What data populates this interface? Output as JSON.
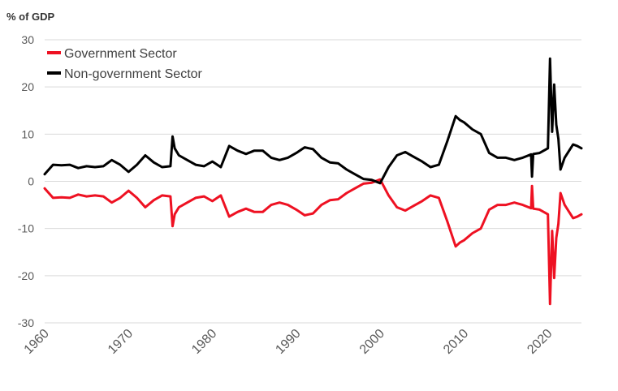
{
  "chart_data": {
    "type": "line",
    "ylabel": "% of GDP",
    "ylim": [
      -30,
      30
    ],
    "xlim": [
      1960,
      2024
    ],
    "y_ticks": [
      "30",
      "20",
      "10",
      "0",
      "-10",
      "-20",
      "-30"
    ],
    "x_ticks": [
      "1960",
      "1970",
      "1980",
      "1990",
      "2000",
      "2010",
      "2020"
    ],
    "grid": true,
    "legend_position": "top-left",
    "series": [
      {
        "name": "Government Sector",
        "color": "#ee1122",
        "x": [
          1960,
          1961,
          1962,
          1963,
          1964,
          1965,
          1966,
          1967,
          1968,
          1969,
          1970,
          1971,
          1972,
          1973,
          1974,
          1975,
          1975.25,
          1975.5,
          1976,
          1977,
          1978,
          1979,
          1980,
          1981,
          1982,
          1983,
          1984,
          1985,
          1986,
          1987,
          1988,
          1989,
          1990,
          1991,
          1992,
          1993,
          1994,
          1995,
          1996,
          1997,
          1998,
          1999,
          2000,
          2001,
          2002,
          2003,
          2004,
          2005,
          2006,
          2007,
          2008,
          2009,
          2009.5,
          2010,
          2011,
          2012,
          2013,
          2014,
          2015,
          2016,
          2017,
          2018,
          2018.1,
          2018.25,
          2019,
          2020,
          2020.25,
          2020.5,
          2020.75,
          2021,
          2021.25,
          2021.5,
          2022,
          2023,
          2023.5,
          2024
        ],
        "values": [
          -1.5,
          -3.5,
          -3.4,
          -3.5,
          -2.8,
          -3.2,
          -3.0,
          -3.2,
          -4.5,
          -3.5,
          -2.0,
          -3.5,
          -5.5,
          -4.0,
          -3.0,
          -3.2,
          -9.5,
          -7.0,
          -5.5,
          -4.5,
          -3.5,
          -3.2,
          -4.2,
          -3.0,
          -7.5,
          -6.5,
          -5.8,
          -6.5,
          -6.5,
          -5.0,
          -4.5,
          -5.0,
          -6.0,
          -7.2,
          -6.8,
          -5.0,
          -4.0,
          -3.8,
          -2.5,
          -1.5,
          -0.5,
          -0.3,
          0.4,
          -3.0,
          -5.5,
          -6.2,
          -5.2,
          -4.2,
          -3.0,
          -3.5,
          -8.5,
          -13.8,
          -13.0,
          -12.5,
          -11.0,
          -10.0,
          -6.0,
          -5.0,
          -5.0,
          -4.5,
          -5.0,
          -5.7,
          -1.0,
          -5.8,
          -6.0,
          -7.0,
          -26.0,
          -10.5,
          -20.5,
          -12.0,
          -9.0,
          -2.5,
          -5.0,
          -7.8,
          -7.5,
          -7.0
        ]
      },
      {
        "name": "Non-government Sector",
        "color": "#000000",
        "x": [
          1960,
          1961,
          1962,
          1963,
          1964,
          1965,
          1966,
          1967,
          1968,
          1969,
          1970,
          1971,
          1972,
          1973,
          1974,
          1975,
          1975.25,
          1975.5,
          1976,
          1977,
          1978,
          1979,
          1980,
          1981,
          1982,
          1983,
          1984,
          1985,
          1986,
          1987,
          1988,
          1989,
          1990,
          1991,
          1992,
          1993,
          1994,
          1995,
          1996,
          1997,
          1998,
          1999,
          2000,
          2001,
          2002,
          2003,
          2004,
          2005,
          2006,
          2007,
          2008,
          2009,
          2009.5,
          2010,
          2011,
          2012,
          2013,
          2014,
          2015,
          2016,
          2017,
          2018,
          2018.1,
          2018.25,
          2019,
          2020,
          2020.25,
          2020.5,
          2020.75,
          2021,
          2021.25,
          2021.5,
          2022,
          2023,
          2023.5,
          2024
        ],
        "values": [
          1.5,
          3.5,
          3.4,
          3.5,
          2.8,
          3.2,
          3.0,
          3.2,
          4.5,
          3.5,
          2.0,
          3.5,
          5.5,
          4.0,
          3.0,
          3.2,
          9.5,
          7.0,
          5.5,
          4.5,
          3.5,
          3.2,
          4.2,
          3.0,
          7.5,
          6.5,
          5.8,
          6.5,
          6.5,
          5.0,
          4.5,
          5.0,
          6.0,
          7.2,
          6.8,
          5.0,
          4.0,
          3.8,
          2.5,
          1.5,
          0.5,
          0.3,
          -0.4,
          3.0,
          5.5,
          6.2,
          5.2,
          4.2,
          3.0,
          3.5,
          8.5,
          13.8,
          13.0,
          12.5,
          11.0,
          10.0,
          6.0,
          5.0,
          5.0,
          4.5,
          5.0,
          5.7,
          1.0,
          5.8,
          6.0,
          7.0,
          26.0,
          10.5,
          20.5,
          12.0,
          9.0,
          2.5,
          5.0,
          7.8,
          7.5,
          7.0
        ]
      }
    ]
  }
}
